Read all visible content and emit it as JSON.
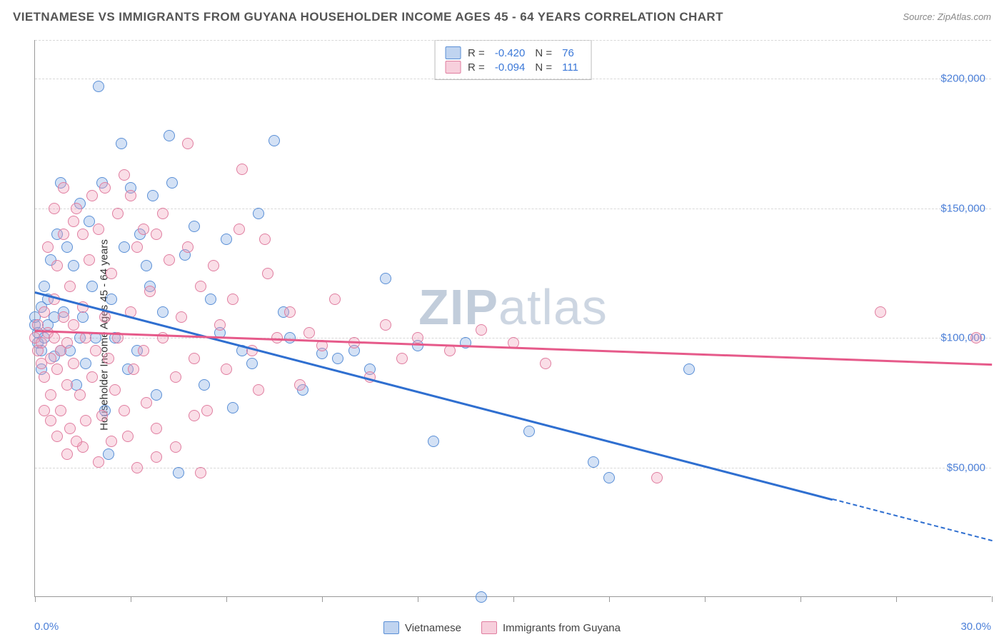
{
  "title": "VIETNAMESE VS IMMIGRANTS FROM GUYANA HOUSEHOLDER INCOME AGES 45 - 64 YEARS CORRELATION CHART",
  "source": "Source: ZipAtlas.com",
  "ylabel": "Householder Income Ages 45 - 64 years",
  "watermark_a": "ZIP",
  "watermark_b": "atlas",
  "chart": {
    "type": "scatter",
    "background_color": "#ffffff",
    "grid_color": "#d8d8d8",
    "axis_color": "#999999",
    "label_color": "#4b7fd8",
    "title_color": "#555555",
    "title_fontsize": 17,
    "label_fontsize": 15,
    "marker_size": 16,
    "xlim": [
      0,
      30
    ],
    "ylim": [
      0,
      215000
    ],
    "x_ticks": [
      0,
      3,
      6,
      9,
      12,
      15,
      18,
      21,
      24,
      27,
      30
    ],
    "x_tick_labels": {
      "0": "0.0%",
      "30": "30.0%"
    },
    "y_gridlines": [
      50000,
      100000,
      150000,
      200000
    ],
    "y_tick_labels": {
      "50000": "$50,000",
      "100000": "$100,000",
      "150000": "$150,000",
      "200000": "$200,000"
    },
    "series": [
      {
        "name": "Vietnamese",
        "color_fill": "rgba(130,170,225,0.35)",
        "color_stroke": "#5a8fd6",
        "r": "-0.420",
        "n": "76",
        "regression": {
          "x1": 0,
          "y1": 118000,
          "x2": 25,
          "y2": 38000,
          "extend_x2": 30,
          "extend_y2": 22000,
          "line_color": "#2f6fd0",
          "line_width": 2.5
        },
        "points": [
          [
            0.0,
            105000
          ],
          [
            0.0,
            108000
          ],
          [
            0.1,
            102000
          ],
          [
            0.1,
            98000
          ],
          [
            0.2,
            112000
          ],
          [
            0.2,
            95000
          ],
          [
            0.2,
            88000
          ],
          [
            0.3,
            120000
          ],
          [
            0.3,
            100000
          ],
          [
            0.4,
            105000
          ],
          [
            0.5,
            130000
          ],
          [
            0.6,
            93000
          ],
          [
            0.7,
            140000
          ],
          [
            0.8,
            160000
          ],
          [
            0.9,
            110000
          ],
          [
            1.0,
            135000
          ],
          [
            1.1,
            95000
          ],
          [
            1.2,
            128000
          ],
          [
            1.3,
            82000
          ],
          [
            1.4,
            152000
          ],
          [
            1.5,
            108000
          ],
          [
            1.6,
            90000
          ],
          [
            1.7,
            145000
          ],
          [
            1.8,
            120000
          ],
          [
            2.0,
            197000
          ],
          [
            2.1,
            160000
          ],
          [
            2.3,
            55000
          ],
          [
            2.4,
            115000
          ],
          [
            2.5,
            100000
          ],
          [
            2.7,
            175000
          ],
          [
            2.8,
            135000
          ],
          [
            3.0,
            158000
          ],
          [
            3.2,
            95000
          ],
          [
            3.5,
            128000
          ],
          [
            3.7,
            155000
          ],
          [
            3.8,
            78000
          ],
          [
            4.0,
            110000
          ],
          [
            4.2,
            178000
          ],
          [
            4.5,
            48000
          ],
          [
            4.7,
            132000
          ],
          [
            5.0,
            143000
          ],
          [
            5.3,
            82000
          ],
          [
            5.5,
            115000
          ],
          [
            6.0,
            138000
          ],
          [
            6.2,
            73000
          ],
          [
            6.5,
            95000
          ],
          [
            7.0,
            148000
          ],
          [
            7.5,
            176000
          ],
          [
            8.0,
            100000
          ],
          [
            8.4,
            80000
          ],
          [
            9.0,
            94000
          ],
          [
            9.5,
            92000
          ],
          [
            10.0,
            95000
          ],
          [
            10.5,
            88000
          ],
          [
            11.0,
            123000
          ],
          [
            12.0,
            97000
          ],
          [
            12.5,
            60000
          ],
          [
            13.5,
            98000
          ],
          [
            14.0,
            0
          ],
          [
            15.5,
            64000
          ],
          [
            17.5,
            52000
          ],
          [
            18.0,
            46000
          ],
          [
            20.5,
            88000
          ],
          [
            4.3,
            160000
          ],
          [
            3.3,
            140000
          ],
          [
            2.9,
            88000
          ],
          [
            1.9,
            100000
          ],
          [
            2.2,
            72000
          ],
          [
            3.6,
            120000
          ],
          [
            5.8,
            102000
          ],
          [
            6.8,
            90000
          ],
          [
            7.8,
            110000
          ],
          [
            0.6,
            108000
          ],
          [
            0.8,
            95000
          ],
          [
            1.4,
            100000
          ],
          [
            0.4,
            115000
          ]
        ]
      },
      {
        "name": "Immigrants from Guyana",
        "color_fill": "rgba(240,160,185,0.35)",
        "color_stroke": "#e07ea0",
        "r": "-0.094",
        "n": "111",
        "regression": {
          "x1": 0,
          "y1": 103000,
          "x2": 30,
          "y2": 90000,
          "line_color": "#e65a8a",
          "line_width": 2.5
        },
        "points": [
          [
            0.0,
            100000
          ],
          [
            0.1,
            95000
          ],
          [
            0.1,
            105000
          ],
          [
            0.2,
            90000
          ],
          [
            0.2,
            98000
          ],
          [
            0.3,
            110000
          ],
          [
            0.3,
            85000
          ],
          [
            0.4,
            102000
          ],
          [
            0.4,
            135000
          ],
          [
            0.5,
            92000
          ],
          [
            0.5,
            78000
          ],
          [
            0.6,
            115000
          ],
          [
            0.6,
            100000
          ],
          [
            0.7,
            88000
          ],
          [
            0.7,
            128000
          ],
          [
            0.8,
            95000
          ],
          [
            0.8,
            72000
          ],
          [
            0.9,
            108000
          ],
          [
            0.9,
            140000
          ],
          [
            1.0,
            82000
          ],
          [
            1.0,
            98000
          ],
          [
            1.1,
            120000
          ],
          [
            1.1,
            65000
          ],
          [
            1.2,
            105000
          ],
          [
            1.2,
            90000
          ],
          [
            1.3,
            150000
          ],
          [
            1.4,
            78000
          ],
          [
            1.5,
            112000
          ],
          [
            1.5,
            58000
          ],
          [
            1.6,
            100000
          ],
          [
            1.7,
            130000
          ],
          [
            1.8,
            85000
          ],
          [
            1.9,
            95000
          ],
          [
            2.0,
            142000
          ],
          [
            2.1,
            70000
          ],
          [
            2.2,
            108000
          ],
          [
            2.3,
            92000
          ],
          [
            2.4,
            125000
          ],
          [
            2.5,
            80000
          ],
          [
            2.6,
            100000
          ],
          [
            2.8,
            163000
          ],
          [
            2.9,
            62000
          ],
          [
            3.0,
            110000
          ],
          [
            3.1,
            88000
          ],
          [
            3.2,
            135000
          ],
          [
            3.4,
            95000
          ],
          [
            3.5,
            75000
          ],
          [
            3.6,
            118000
          ],
          [
            3.8,
            54000
          ],
          [
            4.0,
            100000
          ],
          [
            4.2,
            130000
          ],
          [
            4.4,
            85000
          ],
          [
            4.6,
            108000
          ],
          [
            4.8,
            175000
          ],
          [
            5.0,
            92000
          ],
          [
            5.2,
            120000
          ],
          [
            5.4,
            72000
          ],
          [
            5.2,
            48000
          ],
          [
            5.8,
            105000
          ],
          [
            6.0,
            88000
          ],
          [
            6.2,
            115000
          ],
          [
            6.5,
            165000
          ],
          [
            6.8,
            95000
          ],
          [
            7.0,
            80000
          ],
          [
            7.3,
            125000
          ],
          [
            7.6,
            100000
          ],
          [
            8.0,
            110000
          ],
          [
            8.3,
            82000
          ],
          [
            8.6,
            102000
          ],
          [
            9.0,
            97000
          ],
          [
            9.4,
            115000
          ],
          [
            10.0,
            98000
          ],
          [
            10.5,
            85000
          ],
          [
            11.0,
            105000
          ],
          [
            11.5,
            92000
          ],
          [
            12.0,
            100000
          ],
          [
            13.0,
            95000
          ],
          [
            14.0,
            103000
          ],
          [
            15.0,
            98000
          ],
          [
            16.0,
            90000
          ],
          [
            19.5,
            46000
          ],
          [
            26.5,
            110000
          ],
          [
            29.5,
            100000
          ],
          [
            0.3,
            72000
          ],
          [
            0.5,
            68000
          ],
          [
            0.7,
            62000
          ],
          [
            1.0,
            55000
          ],
          [
            1.3,
            60000
          ],
          [
            1.6,
            68000
          ],
          [
            2.0,
            52000
          ],
          [
            2.4,
            60000
          ],
          [
            2.8,
            72000
          ],
          [
            3.2,
            50000
          ],
          [
            3.8,
            65000
          ],
          [
            4.4,
            58000
          ],
          [
            5.0,
            70000
          ],
          [
            1.8,
            155000
          ],
          [
            2.6,
            148000
          ],
          [
            3.4,
            142000
          ],
          [
            4.0,
            148000
          ],
          [
            1.2,
            145000
          ],
          [
            0.9,
            158000
          ],
          [
            2.2,
            158000
          ],
          [
            0.6,
            150000
          ],
          [
            1.5,
            140000
          ],
          [
            4.8,
            135000
          ],
          [
            5.6,
            128000
          ],
          [
            6.4,
            142000
          ],
          [
            7.2,
            138000
          ],
          [
            3.0,
            155000
          ],
          [
            3.8,
            140000
          ]
        ]
      }
    ]
  },
  "legend_r_label": "R =",
  "legend_n_label": "N ="
}
